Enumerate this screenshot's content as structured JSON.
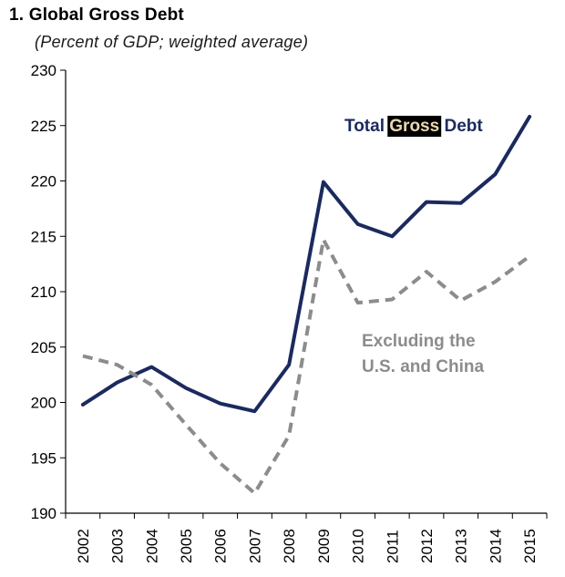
{
  "chart_data": {
    "type": "line",
    "title": "1. Global Gross Debt",
    "subtitle": "(Percent of GDP; weighted average)",
    "xlabel": "",
    "ylabel": "",
    "x": [
      "2002",
      "2003",
      "2004",
      "2005",
      "2006",
      "2007",
      "2008",
      "2009",
      "2010",
      "2011",
      "2012",
      "2013",
      "2014",
      "2015"
    ],
    "ylim": [
      190,
      230
    ],
    "yticks": [
      190,
      195,
      200,
      205,
      210,
      215,
      220,
      225,
      230
    ],
    "grid": false,
    "series": [
      {
        "name": "Total Gross Debt",
        "name_parts": [
          "Total",
          "Gross",
          "Debt"
        ],
        "color": "#1b2a5e",
        "style": "solid",
        "values": [
          199.8,
          201.8,
          203.2,
          201.3,
          199.9,
          199.2,
          203.4,
          219.9,
          216.1,
          215.0,
          218.1,
          218.0,
          220.6,
          225.8
        ]
      },
      {
        "name": "Excluding the U.S. and China",
        "name_lines": [
          "Excluding the",
          "U.S. and China"
        ],
        "color": "#8c8c8c",
        "style": "dashed",
        "values": [
          204.2,
          203.4,
          201.6,
          198.0,
          194.5,
          191.8,
          197.0,
          214.7,
          209.0,
          209.3,
          211.8,
          209.2,
          210.9,
          213.2
        ]
      }
    ]
  }
}
